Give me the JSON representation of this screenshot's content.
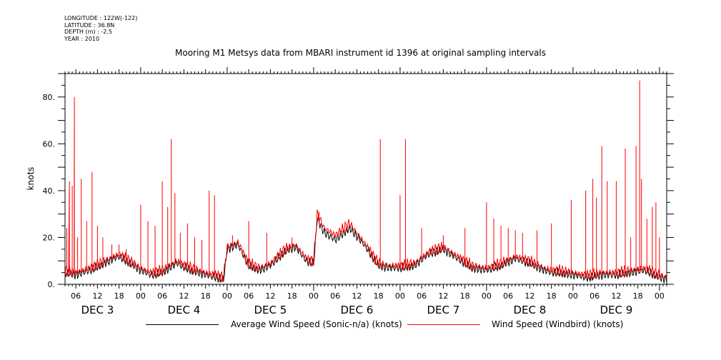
{
  "metadata": [
    "LONGITUDE : 122W(-122)",
    "LATITUDE : 36.8N",
    "DEPTH (m) : -2.5",
    "YEAR : 2010"
  ],
  "chart_data": {
    "type": "line",
    "title": "Mooring M1 Metsys data from MBARI instrument id 1396 at original sampling intervals",
    "xlabel": "",
    "ylabel": "knots",
    "x_unit": "hours since Dec 3 00:00 (2010)",
    "xlim": [
      3,
      170
    ],
    "ylim": [
      0,
      90
    ],
    "y_ticks": [
      0,
      20,
      40,
      60,
      80
    ],
    "y_tick_labels": [
      "0.",
      "20.",
      "40.",
      "60.",
      "80."
    ],
    "x_tick_labels": [
      "06",
      "12",
      "18",
      "00",
      "06",
      "12",
      "18",
      "00",
      "06",
      "12",
      "18",
      "00",
      "06",
      "12",
      "18",
      "00",
      "06",
      "12",
      "18",
      "00",
      "06",
      "12",
      "18",
      "00",
      "06",
      "12",
      "18",
      "00"
    ],
    "day_labels": [
      "DEC  3",
      "DEC  4",
      "DEC  5",
      "DEC  6",
      "DEC  7",
      "DEC  8",
      "DEC  9"
    ],
    "grid": false,
    "legend_position": "bottom",
    "series": [
      {
        "name": "Average Wind Speed (Sonic-n/a) (knots)",
        "color": "#000000",
        "points": [
          [
            3,
            5
          ],
          [
            6,
            4
          ],
          [
            10,
            6
          ],
          [
            14,
            9
          ],
          [
            18,
            12
          ],
          [
            21,
            9
          ],
          [
            24,
            6
          ],
          [
            27,
            4
          ],
          [
            30,
            5
          ],
          [
            34,
            9
          ],
          [
            38,
            6
          ],
          [
            42,
            4
          ],
          [
            45,
            3
          ],
          [
            47,
            2
          ],
          [
            48,
            15
          ],
          [
            51,
            17
          ],
          [
            54,
            8
          ],
          [
            57,
            6
          ],
          [
            60,
            8
          ],
          [
            64,
            14
          ],
          [
            67,
            16
          ],
          [
            70,
            10
          ],
          [
            72,
            9
          ],
          [
            73,
            28
          ],
          [
            75,
            22
          ],
          [
            78,
            19
          ],
          [
            82,
            24
          ],
          [
            86,
            17
          ],
          [
            90,
            8
          ],
          [
            93,
            7
          ],
          [
            96,
            7
          ],
          [
            100,
            8
          ],
          [
            104,
            13
          ],
          [
            108,
            15
          ],
          [
            112,
            11
          ],
          [
            116,
            7
          ],
          [
            120,
            6
          ],
          [
            124,
            8
          ],
          [
            128,
            11
          ],
          [
            132,
            9
          ],
          [
            136,
            6
          ],
          [
            138,
            5
          ],
          [
            140,
            5
          ],
          [
            144,
            4
          ],
          [
            148,
            3
          ],
          [
            152,
            4
          ],
          [
            156,
            4
          ],
          [
            160,
            5
          ],
          [
            164,
            6
          ],
          [
            168,
            3
          ],
          [
            170,
            2
          ]
        ]
      },
      {
        "name": "Wind Speed (Windbird) (knots)",
        "color": "#ff0000",
        "points": [
          [
            3,
            6
          ],
          [
            6,
            5
          ],
          [
            10,
            7
          ],
          [
            14,
            10
          ],
          [
            18,
            13
          ],
          [
            21,
            10
          ],
          [
            24,
            7
          ],
          [
            27,
            5
          ],
          [
            30,
            6
          ],
          [
            34,
            10
          ],
          [
            38,
            7
          ],
          [
            42,
            5
          ],
          [
            45,
            4
          ],
          [
            47,
            3
          ],
          [
            48,
            16
          ],
          [
            51,
            18
          ],
          [
            54,
            9
          ],
          [
            57,
            7
          ],
          [
            60,
            9
          ],
          [
            64,
            15
          ],
          [
            67,
            17
          ],
          [
            70,
            11
          ],
          [
            72,
            10
          ],
          [
            73,
            30
          ],
          [
            75,
            24
          ],
          [
            78,
            21
          ],
          [
            82,
            26
          ],
          [
            86,
            18
          ],
          [
            90,
            9
          ],
          [
            93,
            8
          ],
          [
            96,
            8
          ],
          [
            100,
            9
          ],
          [
            104,
            14
          ],
          [
            108,
            16
          ],
          [
            112,
            12
          ],
          [
            116,
            8
          ],
          [
            120,
            7
          ],
          [
            124,
            9
          ],
          [
            128,
            12
          ],
          [
            132,
            10
          ],
          [
            136,
            7
          ],
          [
            138,
            6
          ],
          [
            140,
            6
          ],
          [
            144,
            5
          ],
          [
            148,
            4
          ],
          [
            152,
            5
          ],
          [
            156,
            5
          ],
          [
            160,
            6
          ],
          [
            164,
            7
          ],
          [
            168,
            4
          ],
          [
            170,
            3
          ]
        ],
        "spikes": [
          [
            3.5,
            24
          ],
          [
            4.2,
            44
          ],
          [
            5,
            42
          ],
          [
            5.6,
            80
          ],
          [
            6.5,
            20
          ],
          [
            7.5,
            45
          ],
          [
            9,
            27
          ],
          [
            10.5,
            48
          ],
          [
            12,
            25
          ],
          [
            13.5,
            20
          ],
          [
            16,
            17
          ],
          [
            18,
            17
          ],
          [
            20,
            15
          ],
          [
            24,
            34
          ],
          [
            26,
            27
          ],
          [
            28,
            25
          ],
          [
            30,
            44
          ],
          [
            31.5,
            33
          ],
          [
            32.5,
            62
          ],
          [
            33.5,
            39
          ],
          [
            35,
            22
          ],
          [
            37,
            26
          ],
          [
            39,
            20
          ],
          [
            41,
            19
          ],
          [
            43,
            40
          ],
          [
            44.5,
            38
          ],
          [
            49.5,
            21
          ],
          [
            54,
            27
          ],
          [
            59,
            22
          ],
          [
            66,
            20
          ],
          [
            73.5,
            31
          ],
          [
            80,
            24
          ],
          [
            90.5,
            62
          ],
          [
            96,
            38
          ],
          [
            97.5,
            62
          ],
          [
            102,
            24
          ],
          [
            108,
            21
          ],
          [
            114,
            24
          ],
          [
            120,
            35
          ],
          [
            122,
            28
          ],
          [
            124,
            25
          ],
          [
            126,
            24
          ],
          [
            128,
            23
          ],
          [
            130,
            22
          ],
          [
            134,
            23
          ],
          [
            138,
            26
          ],
          [
            143.5,
            36
          ],
          [
            147.5,
            40
          ],
          [
            149.5,
            45
          ],
          [
            150.5,
            37
          ],
          [
            152,
            59
          ],
          [
            153.5,
            44
          ],
          [
            156,
            44
          ],
          [
            158.5,
            58
          ],
          [
            160,
            20
          ],
          [
            161.5,
            59
          ],
          [
            162.5,
            87
          ],
          [
            163,
            45
          ],
          [
            164.5,
            28
          ],
          [
            166,
            33
          ],
          [
            167,
            35
          ],
          [
            168,
            20
          ]
        ]
      }
    ]
  }
}
